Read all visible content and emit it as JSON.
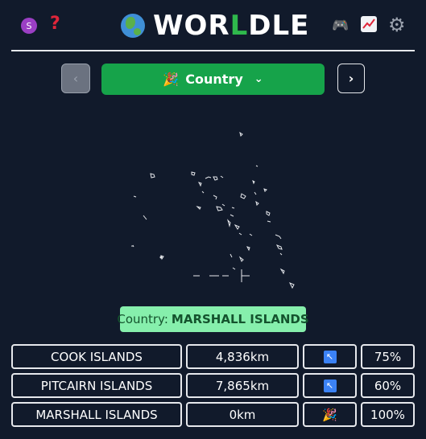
{
  "header": {
    "avatar_letter": "S",
    "help_glyph": "?",
    "title_prefix": "WOR",
    "title_highlight": "L",
    "title_suffix": "DLE",
    "icons": [
      "avatar-icon",
      "help-icon",
      "globe-icon",
      "gamepad-icon",
      "stats-icon",
      "settings-gear-icon"
    ]
  },
  "controls": {
    "prev_glyph": "‹",
    "mode_emoji": "🎉",
    "mode_label": "Country",
    "mode_chevron": "⌄",
    "next_glyph": "›"
  },
  "answer": {
    "prefix": "Country:",
    "value": "MARSHALL ISLANDS"
  },
  "guesses": [
    {
      "name": "COOK ISLANDS",
      "distance": "4,836km",
      "direction": "↖",
      "proximity": "75%"
    },
    {
      "name": "PITCAIRN ISLANDS",
      "distance": "7,865km",
      "direction": "↖",
      "proximity": "60%"
    },
    {
      "name": "MARSHALL ISLANDS",
      "distance": "0km",
      "direction": "🎉",
      "proximity": "100%"
    }
  ],
  "colors": {
    "background": "#111a2b",
    "accent_green": "#16a34a",
    "answer_bg": "#86efac",
    "arrow_blue": "#3b82f6"
  }
}
